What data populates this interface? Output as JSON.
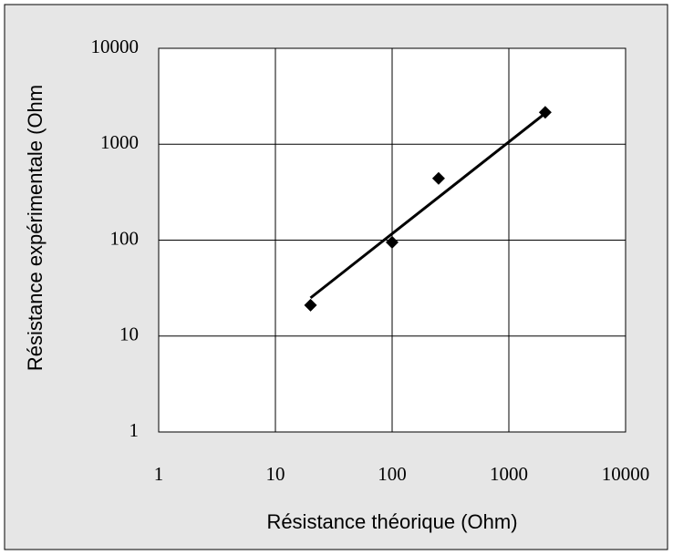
{
  "chart_data": {
    "type": "scatter",
    "xlabel": "Résistance théorique (Ohm)",
    "ylabel": "Résistance expérimentale (Ohm",
    "xscale": "log",
    "yscale": "log",
    "xlim": [
      1,
      10000
    ],
    "ylim": [
      1,
      10000
    ],
    "xticks": [
      1,
      10,
      100,
      1000,
      10000
    ],
    "yticks": [
      1,
      10,
      100,
      1000,
      10000
    ],
    "grid": true,
    "series": [
      {
        "type": "scatter",
        "color": "#000000",
        "x": [
          20,
          100,
          250,
          2050
        ],
        "values": [
          21,
          95,
          440,
          2150
        ]
      },
      {
        "type": "line",
        "color": "#000000",
        "x": [
          20,
          2050
        ],
        "values": [
          25,
          2100
        ]
      }
    ]
  }
}
